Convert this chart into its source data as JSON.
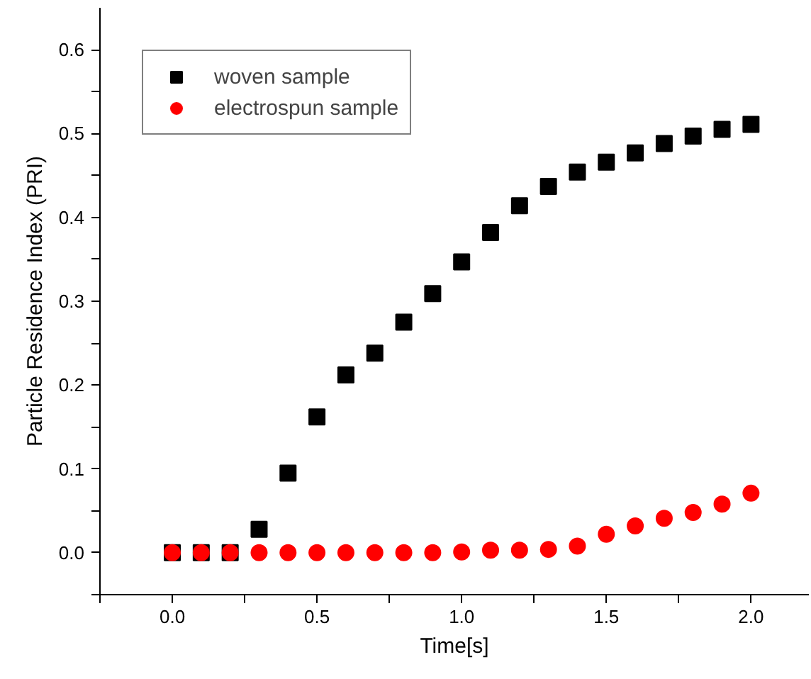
{
  "chart_data": {
    "type": "scatter",
    "xlabel": "Time[s]",
    "ylabel": "Particle Residence Index (PRI)",
    "x": [
      0.0,
      0.1,
      0.2,
      0.3,
      0.4,
      0.5,
      0.6,
      0.7,
      0.8,
      0.9,
      1.0,
      1.1,
      1.2,
      1.3,
      1.4,
      1.5,
      1.6,
      1.7,
      1.8,
      1.9,
      2.0
    ],
    "series": [
      {
        "name": "woven sample",
        "color": "#000000",
        "marker": "square",
        "values": [
          0,
          0,
          0,
          0.028,
          0.095,
          0.162,
          0.212,
          0.238,
          0.275,
          0.309,
          0.347,
          0.382,
          0.414,
          0.437,
          0.454,
          0.466,
          0.477,
          0.488,
          0.497,
          0.505,
          0.511
        ]
      },
      {
        "name": "electrospun sample",
        "color": "#ff0000",
        "marker": "circle",
        "values": [
          0,
          0,
          0,
          0,
          0,
          0,
          0,
          0,
          0,
          0,
          0.001,
          0.003,
          0.003,
          0.004,
          0.008,
          0.022,
          0.032,
          0.041,
          0.048,
          0.058,
          0.071
        ]
      }
    ],
    "xlim": [
      -0.25,
      2.2
    ],
    "ylim": [
      -0.05,
      0.65
    ],
    "xticks": [
      {
        "value": -0.25,
        "label": null
      },
      {
        "value": 0.0,
        "label": "0.0"
      },
      {
        "value": 0.25,
        "label": null
      },
      {
        "value": 0.5,
        "label": "0.5"
      },
      {
        "value": 0.75,
        "label": null
      },
      {
        "value": 1.0,
        "label": "1.0"
      },
      {
        "value": 1.25,
        "label": null
      },
      {
        "value": 1.5,
        "label": "1.5"
      },
      {
        "value": 1.75,
        "label": null
      },
      {
        "value": 2.0,
        "label": "2.0"
      }
    ],
    "yticks": [
      {
        "value": -0.05,
        "label": null
      },
      {
        "value": 0.0,
        "label": "0.0"
      },
      {
        "value": 0.05,
        "label": null
      },
      {
        "value": 0.1,
        "label": "0.1"
      },
      {
        "value": 0.15,
        "label": null
      },
      {
        "value": 0.2,
        "label": "0.2"
      },
      {
        "value": 0.25,
        "label": null
      },
      {
        "value": 0.3,
        "label": "0.3"
      },
      {
        "value": 0.35,
        "label": null
      },
      {
        "value": 0.4,
        "label": "0.4"
      },
      {
        "value": 0.45,
        "label": null
      },
      {
        "value": 0.5,
        "label": "0.5"
      },
      {
        "value": 0.55,
        "label": null
      },
      {
        "value": 0.6,
        "label": "0.6"
      }
    ],
    "grid": false,
    "legend": "top left"
  }
}
